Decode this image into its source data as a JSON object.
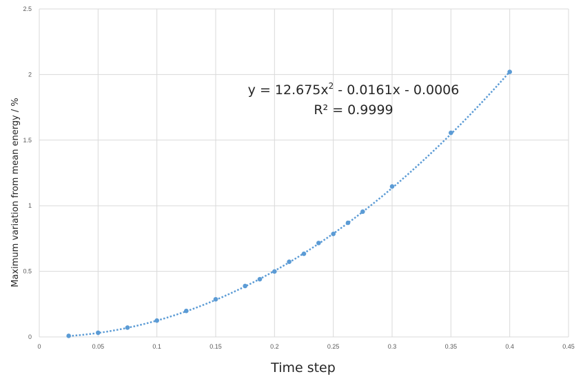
{
  "chart_data": {
    "type": "scatter",
    "xlabel": "Time step",
    "ylabel": "Maximum  variation from mean energy / %",
    "xlim": [
      0,
      0.45
    ],
    "ylim": [
      0,
      2.5
    ],
    "x_ticks": [
      "0",
      "0.05",
      "0.1",
      "0.15",
      "0.2",
      "0.25",
      "0.3",
      "0.35",
      "0.4",
      "0.45"
    ],
    "y_ticks": [
      "0",
      "0.5",
      "1",
      "1.5",
      "2",
      "2.5"
    ],
    "grid": true,
    "point_color": "#5b9bd5",
    "trendline": {
      "type": "polynomial",
      "order": 2,
      "coefficients": [
        12.675,
        -0.0161,
        -0.0006
      ],
      "style": "dotted",
      "color": "#5b9bd5",
      "equation_prefix": "y = 12.675x",
      "equation_exponent": "2",
      "equation_suffix": " - 0.0161x - 0.0006",
      "r_squared_label": "R² = 0.9999"
    },
    "series": [
      {
        "x": [
          0.025,
          0.05,
          0.075,
          0.1,
          0.125,
          0.15,
          0.175,
          0.1875,
          0.2,
          0.2125,
          0.225,
          0.2375,
          0.25,
          0.2625,
          0.275,
          0.3,
          0.35,
          0.4
        ],
        "y": [
          0.008,
          0.032,
          0.071,
          0.125,
          0.198,
          0.287,
          0.388,
          0.44,
          0.499,
          0.573,
          0.634,
          0.716,
          0.785,
          0.87,
          0.955,
          1.147,
          1.556,
          2.02
        ]
      }
    ]
  }
}
